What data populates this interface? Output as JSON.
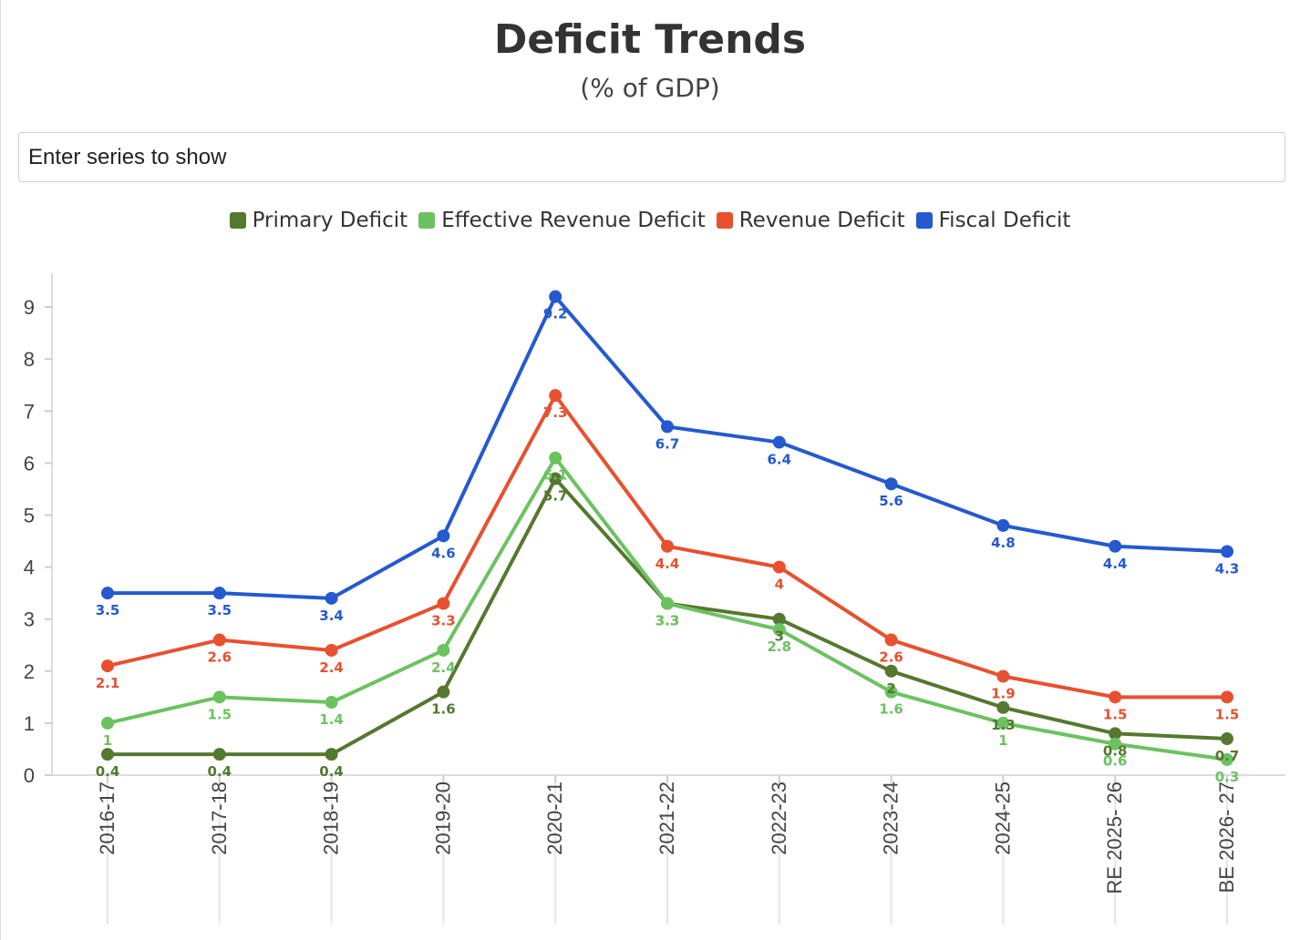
{
  "chart_data": {
    "type": "line",
    "title": "Deficit Trends",
    "subtitle": "(% of GDP)",
    "categories": [
      "2016-17",
      "2017-18",
      "2018-19",
      "2019-20",
      "2020-21",
      "2021-22",
      "2022-23",
      "2023-24",
      "2024-25",
      "RE 2025- 26",
      "BE 2026- 27"
    ],
    "yticks": [
      0,
      1,
      2,
      3,
      4,
      5,
      6,
      7,
      8,
      9
    ],
    "ylim": [
      0,
      9.3
    ],
    "xlabel": "",
    "ylabel": "",
    "legend_position": "top-center",
    "series": [
      {
        "name": "Primary Deficit",
        "color": "#55782f",
        "values": [
          0.4,
          0.4,
          0.4,
          1.6,
          5.7,
          3.3,
          3,
          2,
          1.3,
          0.8,
          0.7
        ],
        "label_pos": "below"
      },
      {
        "name": "Effective Revenue Deficit",
        "color": "#6cc261",
        "values": [
          1,
          1.5,
          1.4,
          2.4,
          6.1,
          3.3,
          2.8,
          1.6,
          1,
          0.6,
          0.3
        ],
        "label_pos": "below"
      },
      {
        "name": "Revenue Deficit",
        "color": "#e8502f",
        "values": [
          2.1,
          2.6,
          2.4,
          3.3,
          7.3,
          4.4,
          4,
          2.6,
          1.9,
          1.5,
          1.5
        ],
        "label_pos": "below"
      },
      {
        "name": "Fiscal Deficit",
        "color": "#2459d0",
        "values": [
          3.5,
          3.5,
          3.4,
          4.6,
          9.2,
          6.7,
          6.4,
          5.6,
          4.8,
          4.4,
          4.3
        ],
        "label_pos": "below"
      }
    ]
  },
  "header": {
    "title": "Deficit Trends",
    "subtitle": "(% of GDP)"
  },
  "search": {
    "placeholder": "Enter series to show"
  },
  "legend": {
    "items": [
      {
        "label": "Primary Deficit",
        "color": "#55782f"
      },
      {
        "label": "Effective Revenue Deficit",
        "color": "#6cc261"
      },
      {
        "label": "Revenue Deficit",
        "color": "#e8502f"
      },
      {
        "label": "Fiscal Deficit",
        "color": "#2459d0"
      }
    ]
  }
}
